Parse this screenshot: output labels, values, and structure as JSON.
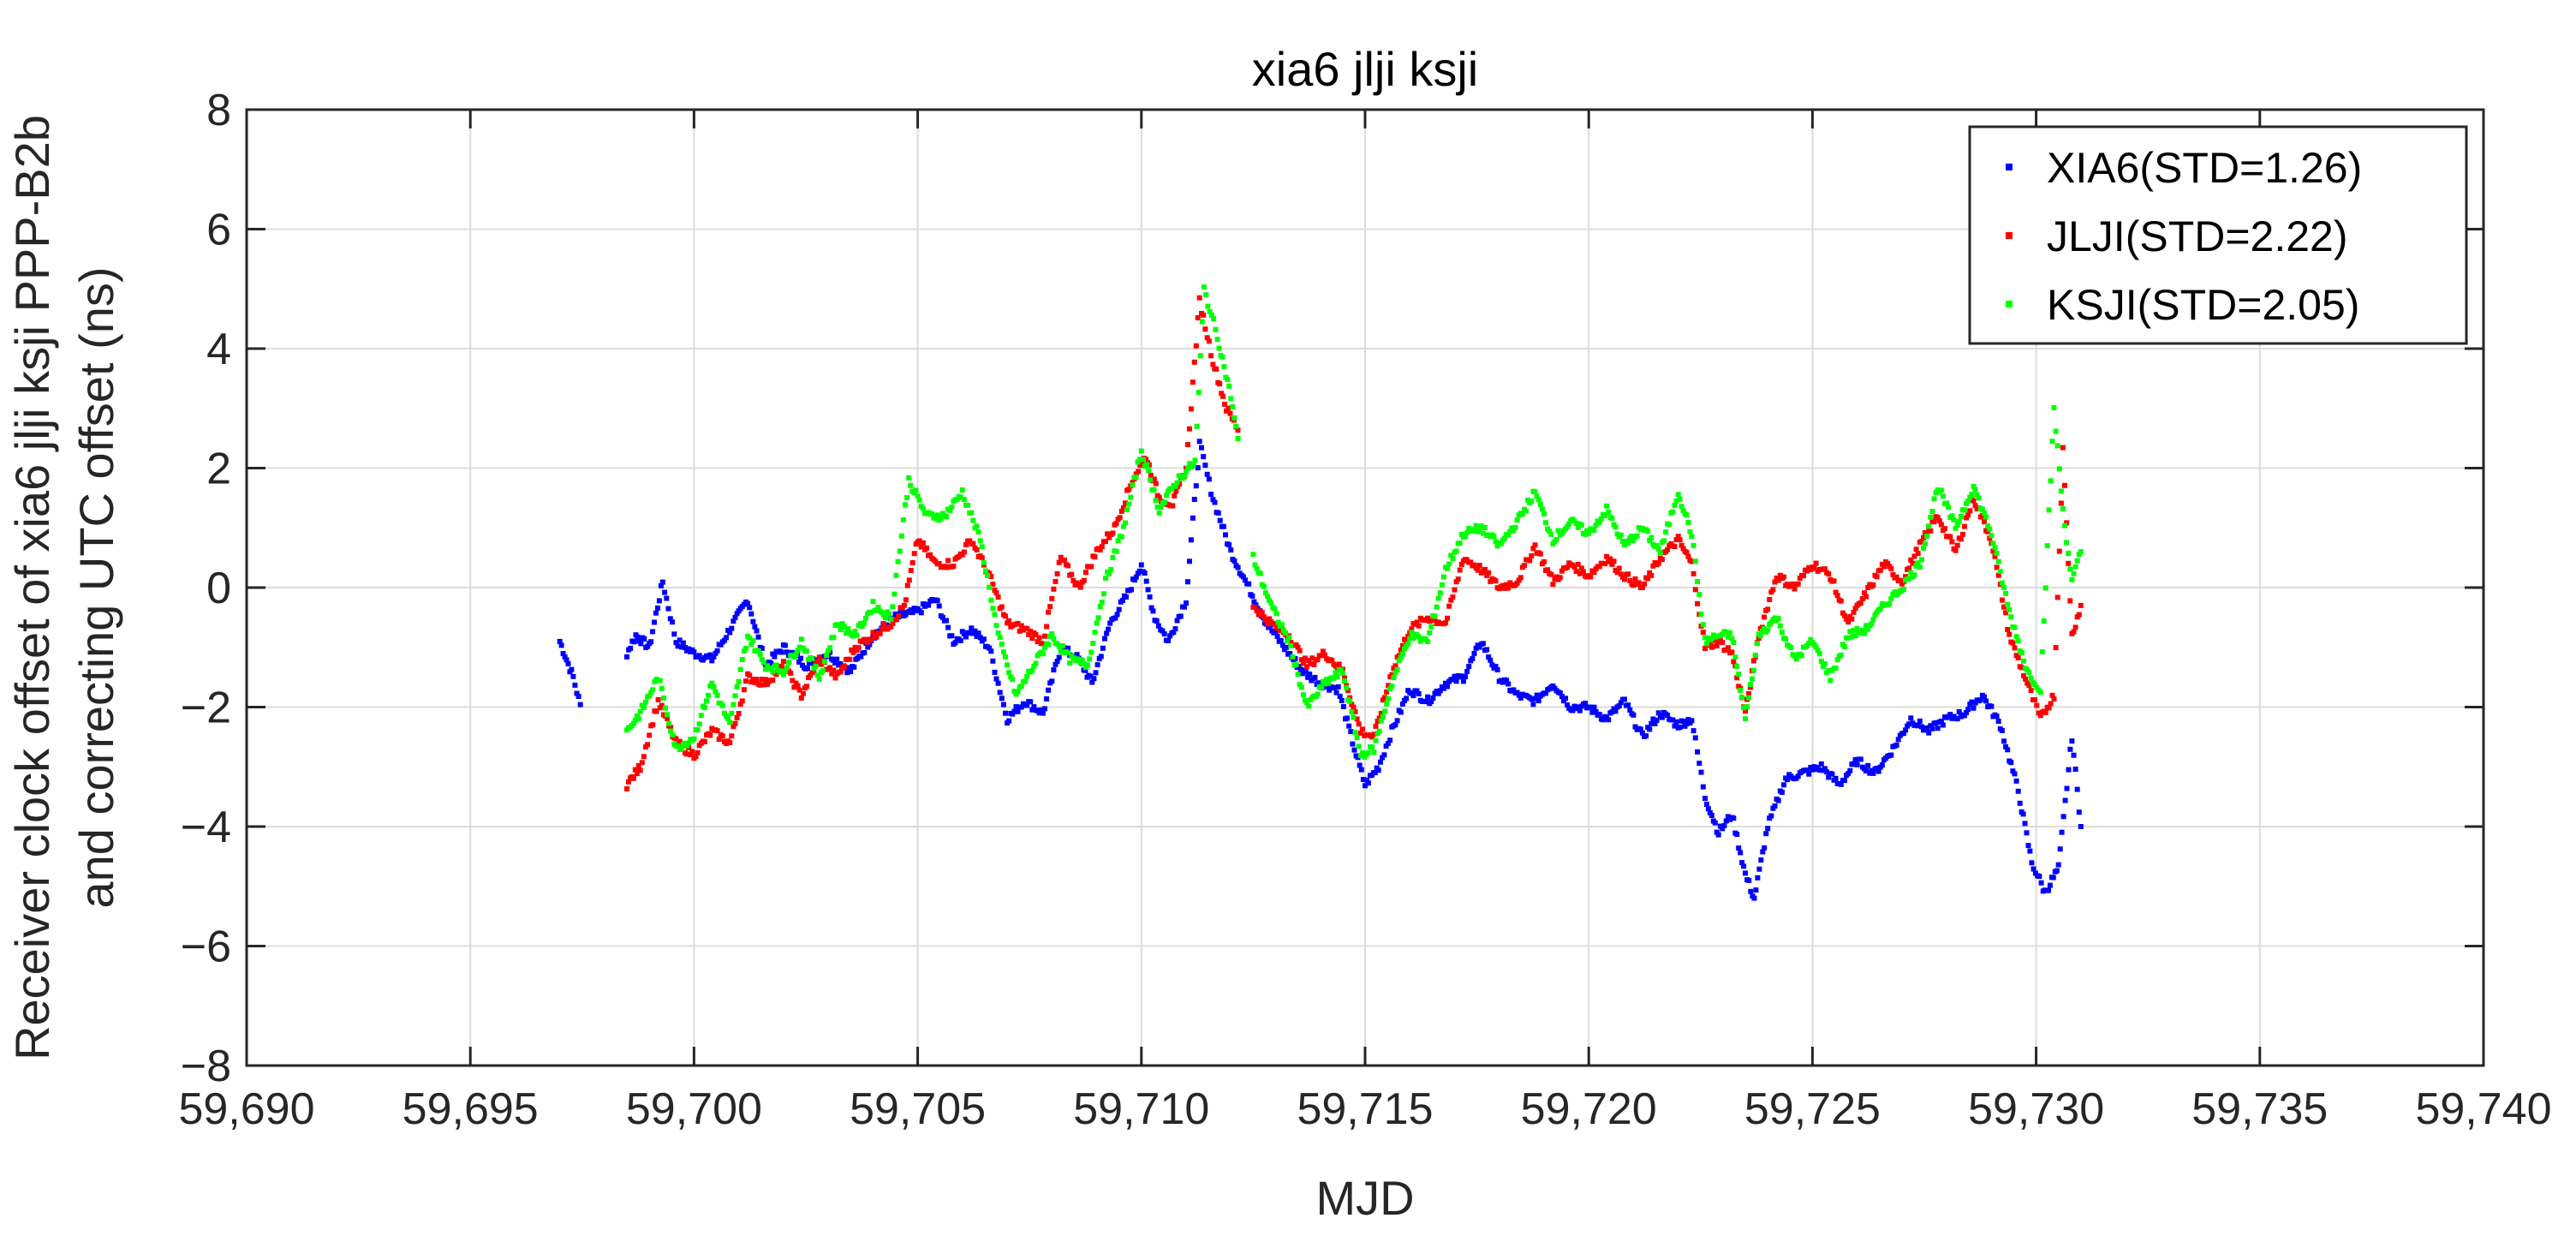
{
  "chart_data": {
    "type": "scatter",
    "title": "xia6 jlji ksji",
    "xlabel": "MJD",
    "ylabel_line1": "Receiver clock offset of xia6 jlji ksji PPP-B2b",
    "ylabel_line2": "and  correcting UTC offset (ns)",
    "xlim": [
      59690,
      59740
    ],
    "ylim": [
      -8,
      8
    ],
    "xticks": [
      59690,
      59695,
      59700,
      59705,
      59710,
      59715,
      59720,
      59725,
      59730,
      59735,
      59740
    ],
    "xtick_labels": [
      "59,690",
      "59,695",
      "59,700",
      "59,705",
      "59,710",
      "59,715",
      "59,720",
      "59,725",
      "59,730",
      "59,735",
      "59,740"
    ],
    "yticks": [
      -8,
      -6,
      -4,
      -2,
      0,
      2,
      4,
      6,
      8
    ],
    "ytick_labels": [
      "−8",
      "−6",
      "−4",
      "−2",
      "0",
      "2",
      "4",
      "6",
      "8"
    ],
    "grid": true,
    "legend_position": "top-right",
    "series": [
      {
        "name": "XIA6(STD=1.26)",
        "color": "#0000ff",
        "keypoints": [
          [
            59697.0,
            -0.9
          ],
          [
            59697.3,
            -1.5
          ],
          [
            59697.5,
            -2.1
          ],
          [
            59697.6,
            null
          ],
          [
            59698.5,
            -1.1
          ],
          [
            59698.7,
            -0.8
          ],
          [
            59699.0,
            -1.0
          ],
          [
            59699.3,
            0.1
          ],
          [
            59699.6,
            -0.9
          ],
          [
            59700.0,
            -1.1
          ],
          [
            59700.4,
            -1.2
          ],
          [
            59700.8,
            -0.7
          ],
          [
            59701.2,
            -0.2
          ],
          [
            59701.6,
            -1.3
          ],
          [
            59702.0,
            -1.0
          ],
          [
            59702.5,
            -1.3
          ],
          [
            59703.0,
            -1.1
          ],
          [
            59703.5,
            -1.4
          ],
          [
            59704.0,
            -0.8
          ],
          [
            59704.5,
            -0.5
          ],
          [
            59705.0,
            -0.4
          ],
          [
            59705.4,
            -0.2
          ],
          [
            59705.8,
            -0.9
          ],
          [
            59706.2,
            -0.7
          ],
          [
            59706.6,
            -1.0
          ],
          [
            59707.0,
            -2.2
          ],
          [
            59707.4,
            -1.9
          ],
          [
            59707.8,
            -2.1
          ],
          [
            59708.2,
            -1.0
          ],
          [
            59708.6,
            -1.2
          ],
          [
            59708.9,
            -1.6
          ],
          [
            59709.3,
            -0.6
          ],
          [
            59709.7,
            -0.1
          ],
          [
            59710.0,
            0.4
          ],
          [
            59710.3,
            -0.5
          ],
          [
            59710.6,
            -0.9
          ],
          [
            59711.0,
            -0.2
          ],
          [
            59711.3,
            2.4
          ],
          [
            59711.6,
            1.5
          ],
          [
            59712.0,
            0.6
          ],
          [
            59712.4,
            0.0
          ],
          [
            59712.8,
            -0.6
          ],
          [
            59713.2,
            -1.0
          ],
          [
            59713.6,
            -1.4
          ],
          [
            59714.0,
            -1.6
          ],
          [
            59714.4,
            -1.7
          ],
          [
            59714.8,
            -2.8
          ],
          [
            59715.0,
            -3.3
          ],
          [
            59715.3,
            -3.0
          ],
          [
            59715.6,
            -2.4
          ],
          [
            59716.0,
            -1.7
          ],
          [
            59716.4,
            -1.9
          ],
          [
            59716.8,
            -1.6
          ],
          [
            59717.2,
            -1.5
          ],
          [
            59717.6,
            -0.9
          ],
          [
            59718.0,
            -1.5
          ],
          [
            59718.4,
            -1.8
          ],
          [
            59718.8,
            -1.9
          ],
          [
            59719.2,
            -1.6
          ],
          [
            59719.6,
            -2.0
          ],
          [
            59720.0,
            -2.0
          ],
          [
            59720.4,
            -2.2
          ],
          [
            59720.8,
            -1.9
          ],
          [
            59721.2,
            -2.5
          ],
          [
            59721.6,
            -2.1
          ],
          [
            59722.0,
            -2.3
          ],
          [
            59722.3,
            -2.2
          ],
          [
            59722.6,
            -3.5
          ],
          [
            59722.9,
            -4.1
          ],
          [
            59723.2,
            -3.8
          ],
          [
            59723.5,
            -4.8
          ],
          [
            59723.7,
            -5.2
          ],
          [
            59724.0,
            -4.0
          ],
          [
            59724.4,
            -3.2
          ],
          [
            59724.8,
            -3.1
          ],
          [
            59725.2,
            -3.0
          ],
          [
            59725.6,
            -3.3
          ],
          [
            59726.0,
            -2.9
          ],
          [
            59726.4,
            -3.1
          ],
          [
            59726.8,
            -2.7
          ],
          [
            59727.2,
            -2.2
          ],
          [
            59727.6,
            -2.4
          ],
          [
            59728.0,
            -2.2
          ],
          [
            59728.4,
            -2.1
          ],
          [
            59728.8,
            -1.8
          ],
          [
            59729.2,
            -2.3
          ],
          [
            59729.6,
            -3.4
          ],
          [
            59729.9,
            -4.6
          ],
          [
            59730.2,
            -5.1
          ],
          [
            59730.5,
            -4.7
          ],
          [
            59730.8,
            -2.5
          ],
          [
            59731.0,
            -4.0
          ]
        ]
      },
      {
        "name": "JLJI(STD=2.22)",
        "color": "#ff0000",
        "keypoints": [
          [
            59698.5,
            -3.3
          ],
          [
            59698.8,
            -3.0
          ],
          [
            59699.2,
            -1.9
          ],
          [
            59699.6,
            -2.6
          ],
          [
            59700.0,
            -2.8
          ],
          [
            59700.4,
            -2.4
          ],
          [
            59700.8,
            -2.6
          ],
          [
            59701.2,
            -1.5
          ],
          [
            59701.6,
            -1.6
          ],
          [
            59702.0,
            -1.3
          ],
          [
            59702.4,
            -1.8
          ],
          [
            59702.8,
            -1.2
          ],
          [
            59703.2,
            -1.5
          ],
          [
            59703.6,
            -1.0
          ],
          [
            59704.0,
            -0.8
          ],
          [
            59704.4,
            -0.6
          ],
          [
            59704.7,
            -0.3
          ],
          [
            59705.0,
            0.8
          ],
          [
            59705.4,
            0.4
          ],
          [
            59705.8,
            0.4
          ],
          [
            59706.2,
            0.8
          ],
          [
            59706.6,
            0.2
          ],
          [
            59707.0,
            -0.6
          ],
          [
            59707.4,
            -0.7
          ],
          [
            59707.8,
            -0.9
          ],
          [
            59708.2,
            0.5
          ],
          [
            59708.6,
            0.0
          ],
          [
            59709.0,
            0.6
          ],
          [
            59709.4,
            1.0
          ],
          [
            59709.8,
            1.8
          ],
          [
            59710.1,
            2.2
          ],
          [
            59710.4,
            1.5
          ],
          [
            59710.7,
            1.4
          ],
          [
            59711.0,
            2.0
          ],
          [
            59711.3,
            4.8
          ],
          [
            59711.6,
            3.8
          ],
          [
            59711.9,
            3.0
          ],
          [
            59712.2,
            2.6
          ],
          [
            59712.5,
            null
          ],
          [
            59712.5,
            -0.3
          ],
          [
            59712.9,
            -0.6
          ],
          [
            59713.3,
            -0.8
          ],
          [
            59713.7,
            -1.3
          ],
          [
            59714.1,
            -1.1
          ],
          [
            59714.5,
            -1.4
          ],
          [
            59714.9,
            -2.4
          ],
          [
            59715.2,
            -2.5
          ],
          [
            59715.6,
            -1.4
          ],
          [
            59716.0,
            -0.7
          ],
          [
            59716.4,
            -0.5
          ],
          [
            59716.8,
            -0.6
          ],
          [
            59717.2,
            0.5
          ],
          [
            59717.6,
            0.3
          ],
          [
            59718.0,
            0.0
          ],
          [
            59718.4,
            0.1
          ],
          [
            59718.8,
            0.7
          ],
          [
            59719.2,
            0.1
          ],
          [
            59719.6,
            0.4
          ],
          [
            59720.0,
            0.2
          ],
          [
            59720.4,
            0.5
          ],
          [
            59720.8,
            0.2
          ],
          [
            59721.2,
            0.0
          ],
          [
            59721.6,
            0.5
          ],
          [
            59722.0,
            0.8
          ],
          [
            59722.3,
            0.4
          ],
          [
            59722.6,
            -1.0
          ],
          [
            59722.9,
            -0.9
          ],
          [
            59723.2,
            -1.1
          ],
          [
            59723.5,
            -2.1
          ],
          [
            59723.8,
            -0.8
          ],
          [
            59724.2,
            0.2
          ],
          [
            59724.6,
            0.0
          ],
          [
            59725.0,
            0.4
          ],
          [
            59725.4,
            0.2
          ],
          [
            59725.8,
            -0.6
          ],
          [
            59726.2,
            -0.1
          ],
          [
            59726.6,
            0.4
          ],
          [
            59727.0,
            0.1
          ],
          [
            59727.4,
            0.7
          ],
          [
            59727.8,
            1.2
          ],
          [
            59728.2,
            0.6
          ],
          [
            59728.6,
            1.5
          ],
          [
            59729.0,
            0.8
          ],
          [
            59729.4,
            -0.8
          ],
          [
            59729.8,
            -1.6
          ],
          [
            59730.1,
            -2.2
          ],
          [
            59730.4,
            -1.8
          ],
          [
            59730.6,
            2.3
          ],
          [
            59730.8,
            -0.8
          ],
          [
            59731.0,
            -0.3
          ]
        ]
      },
      {
        "name": "KSJI(STD=2.05)",
        "color": "#00ff00",
        "keypoints": [
          [
            59698.5,
            -2.4
          ],
          [
            59698.8,
            -2.1
          ],
          [
            59699.2,
            -1.5
          ],
          [
            59699.6,
            -2.7
          ],
          [
            59700.0,
            -2.5
          ],
          [
            59700.4,
            -1.6
          ],
          [
            59700.8,
            -2.3
          ],
          [
            59701.2,
            -0.8
          ],
          [
            59701.6,
            -1.3
          ],
          [
            59702.0,
            -1.4
          ],
          [
            59702.4,
            -0.9
          ],
          [
            59702.8,
            -1.5
          ],
          [
            59703.2,
            -0.6
          ],
          [
            59703.6,
            -0.8
          ],
          [
            59704.0,
            -0.3
          ],
          [
            59704.4,
            -0.5
          ],
          [
            59704.8,
            1.8
          ],
          [
            59705.2,
            1.2
          ],
          [
            59705.6,
            1.2
          ],
          [
            59706.0,
            1.6
          ],
          [
            59706.4,
            0.8
          ],
          [
            59706.8,
            -0.8
          ],
          [
            59707.2,
            -1.8
          ],
          [
            59707.6,
            -1.3
          ],
          [
            59708.0,
            -0.8
          ],
          [
            59708.4,
            -1.2
          ],
          [
            59708.8,
            -1.3
          ],
          [
            59709.2,
            0.1
          ],
          [
            59709.6,
            1.0
          ],
          [
            59710.0,
            2.3
          ],
          [
            59710.4,
            1.3
          ],
          [
            59710.8,
            1.8
          ],
          [
            59711.2,
            2.1
          ],
          [
            59711.4,
            5.0
          ],
          [
            59711.7,
            4.2
          ],
          [
            59712.0,
            3.2
          ],
          [
            59712.2,
            2.3
          ],
          [
            59712.5,
            null
          ],
          [
            59712.5,
            0.5
          ],
          [
            59712.9,
            -0.3
          ],
          [
            59713.3,
            -0.9
          ],
          [
            59713.7,
            -2.0
          ],
          [
            59714.1,
            -1.6
          ],
          [
            59714.5,
            -1.4
          ],
          [
            59714.9,
            -2.8
          ],
          [
            59715.2,
            -2.7
          ],
          [
            59715.6,
            -1.6
          ],
          [
            59716.0,
            -0.8
          ],
          [
            59716.4,
            -0.9
          ],
          [
            59716.8,
            0.3
          ],
          [
            59717.2,
            0.9
          ],
          [
            59717.6,
            1.0
          ],
          [
            59718.0,
            0.7
          ],
          [
            59718.4,
            1.1
          ],
          [
            59718.8,
            1.6
          ],
          [
            59719.2,
            0.8
          ],
          [
            59719.6,
            1.1
          ],
          [
            59720.0,
            0.9
          ],
          [
            59720.4,
            1.3
          ],
          [
            59720.8,
            0.7
          ],
          [
            59721.2,
            1.0
          ],
          [
            59721.6,
            0.6
          ],
          [
            59722.0,
            1.6
          ],
          [
            59722.3,
            0.9
          ],
          [
            59722.6,
            -0.9
          ],
          [
            59722.9,
            -0.8
          ],
          [
            59723.2,
            -0.8
          ],
          [
            59723.5,
            -2.2
          ],
          [
            59723.8,
            -0.8
          ],
          [
            59724.2,
            -0.5
          ],
          [
            59724.6,
            -1.2
          ],
          [
            59725.0,
            -0.9
          ],
          [
            59725.4,
            -1.5
          ],
          [
            59725.8,
            -0.8
          ],
          [
            59726.2,
            -0.7
          ],
          [
            59726.6,
            -0.3
          ],
          [
            59727.0,
            0.0
          ],
          [
            59727.4,
            0.4
          ],
          [
            59727.8,
            1.7
          ],
          [
            59728.2,
            1.0
          ],
          [
            59728.6,
            1.7
          ],
          [
            59729.0,
            0.9
          ],
          [
            59729.4,
            -0.4
          ],
          [
            59729.8,
            -1.4
          ],
          [
            59730.1,
            -1.7
          ],
          [
            59730.4,
            3.0
          ],
          [
            59730.6,
            1.3
          ],
          [
            59730.8,
            0.1
          ],
          [
            59731.0,
            0.6
          ]
        ]
      }
    ]
  }
}
